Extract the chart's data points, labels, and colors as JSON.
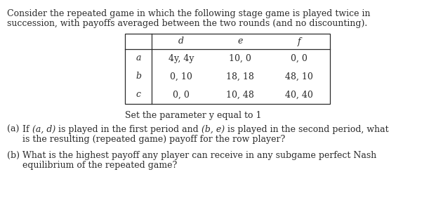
{
  "title_line1": "Consider the repeated game in which the following stage game is played twice in",
  "title_line2": "succession, with payoffs averaged between the two rounds (and no discounting).",
  "col_headers": [
    "d",
    "e",
    "f"
  ],
  "row_headers": [
    "a",
    "b",
    "c"
  ],
  "cells": [
    [
      "4y, 4y",
      "10, 0",
      "0, 0"
    ],
    [
      "0, 10",
      "18, 18",
      "48, 10"
    ],
    [
      "0, 0",
      "10, 48",
      "40, 40"
    ]
  ],
  "set_param_text": "Set the parameter y equal to 1",
  "font_color": "#2b2b2b",
  "bg_color": "#ffffff",
  "font_size": 9.0
}
